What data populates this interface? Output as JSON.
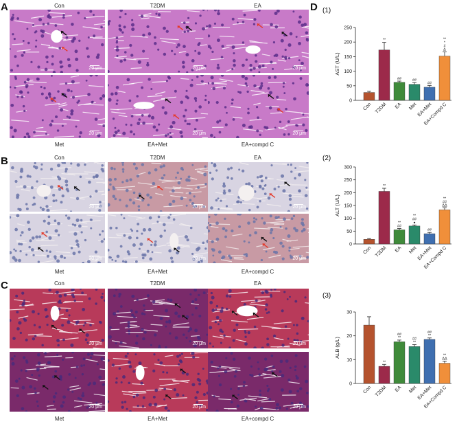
{
  "panels": [
    {
      "letter": "A",
      "top": [
        "Con",
        "T2DM",
        "EA"
      ],
      "bottom": [
        "Met",
        "EA+Met",
        "EA+compd C"
      ],
      "stain": "he"
    },
    {
      "letter": "B",
      "top": [
        "Con",
        "T2DM",
        "EA"
      ],
      "bottom": [
        "Met",
        "EA+Met",
        "EA+compd C"
      ],
      "stain": "ihc"
    },
    {
      "letter": "C",
      "top": [
        "Con",
        "T2DM",
        "EA"
      ],
      "bottom": [
        "Met",
        "EA+Met",
        "EA+compd C"
      ],
      "stain": "masson"
    }
  ],
  "scale_bar_label": "20 μm",
  "panel_d": {
    "letter": "D"
  },
  "chart_data": [
    {
      "type": "bar",
      "subtitle": "(1)",
      "ylabel": "AST (U/L)",
      "categories": [
        "Con",
        "T2DM",
        "EA",
        "Met",
        "EA+Met",
        "EA+Compd C"
      ],
      "values": [
        27,
        173,
        62,
        55,
        45,
        152
      ],
      "errors": [
        4,
        26,
        4,
        6,
        6,
        14
      ],
      "ylim": [
        0,
        250
      ],
      "yticks": [
        0,
        50,
        100,
        150,
        200,
        250
      ],
      "colors": [
        "#b5532e",
        "#9c2a4a",
        "#3f8a3a",
        "#2a8a6a",
        "#3f6fb0",
        "#f08f3a"
      ],
      "annotations": [
        "",
        "**",
        "##",
        "##",
        "##",
        "**\n*\n#\nΔ"
      ]
    },
    {
      "type": "bar",
      "subtitle": "(2)",
      "ylabel": "ALT (U/L)",
      "categories": [
        "Con",
        "T2DM",
        "EA",
        "Met",
        "EA+Met",
        "EA+Compd C"
      ],
      "values": [
        18,
        205,
        55,
        70,
        40,
        133
      ],
      "errors": [
        3,
        12,
        5,
        4,
        5,
        8
      ],
      "ylim": [
        0,
        300
      ],
      "yticks": [
        0,
        50,
        100,
        150,
        200,
        250,
        300
      ],
      "colors": [
        "#b5532e",
        "#9c2a4a",
        "#3f8a3a",
        "#2a8a6a",
        "#3f6fb0",
        "#f08f3a"
      ],
      "annotations": [
        "",
        "**",
        "**\n##",
        "**\n##\n●",
        "##",
        "**\n##\nΔΔ"
      ]
    },
    {
      "type": "bar",
      "subtitle": "(3)",
      "ylabel": "ALB (g/L)",
      "categories": [
        "Con",
        "T2DM",
        "EA",
        "Met",
        "EA+Met",
        "EA+Compd C"
      ],
      "values": [
        24.5,
        7.2,
        17.5,
        15.5,
        18.5,
        8.5
      ],
      "errors": [
        3.5,
        0.8,
        0.7,
        0.8,
        0.6,
        0.9
      ],
      "ylim": [
        0,
        30
      ],
      "yticks": [
        0,
        10,
        20,
        30
      ],
      "colors": [
        "#b5532e",
        "#9c2a4a",
        "#3f8a3a",
        "#2a8a6a",
        "#3f6fb0",
        "#f08f3a"
      ],
      "annotations": [
        "",
        "**",
        "##\n**",
        "##\n**",
        "##\n**",
        "**\nΔΔ"
      ]
    }
  ]
}
